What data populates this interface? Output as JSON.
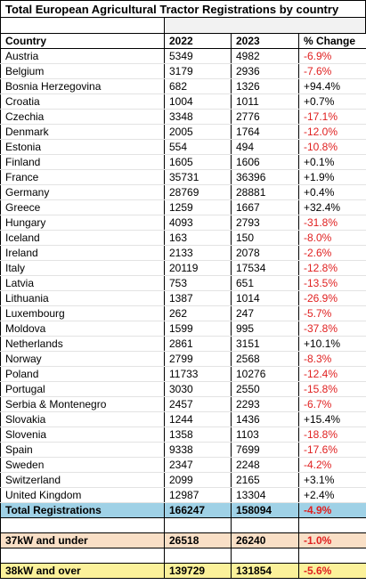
{
  "title": "Total European Agricultural Tractor Registrations by country",
  "headers": [
    "Country",
    "2022",
    "2023",
    "% Change"
  ],
  "rows": [
    [
      "Austria",
      "5349",
      "4982",
      "-6.9%"
    ],
    [
      "Belgium",
      "3179",
      "2936",
      "-7.6%"
    ],
    [
      "Bosnia Herzegovina",
      "682",
      "1326",
      "+94.4%"
    ],
    [
      "Croatia",
      "1004",
      "1011",
      "+0.7%"
    ],
    [
      "Czechia",
      "3348",
      "2776",
      "-17.1%"
    ],
    [
      "Denmark",
      "2005",
      "1764",
      "-12.0%"
    ],
    [
      "Estonia",
      "554",
      "494",
      "-10.8%"
    ],
    [
      "Finland",
      "1605",
      "1606",
      "+0.1%"
    ],
    [
      "France",
      "35731",
      "36396",
      "+1.9%"
    ],
    [
      "Germany",
      "28769",
      "28881",
      "+0.4%"
    ],
    [
      "Greece",
      "1259",
      "1667",
      "+32.4%"
    ],
    [
      "Hungary",
      "4093",
      "2793",
      "-31.8%"
    ],
    [
      "Iceland",
      "163",
      "150",
      "-8.0%"
    ],
    [
      "Ireland",
      "2133",
      "2078",
      "-2.6%"
    ],
    [
      "Italy",
      "20119",
      "17534",
      "-12.8%"
    ],
    [
      "Latvia",
      "753",
      "651",
      "-13.5%"
    ],
    [
      "Lithuania",
      "1387",
      "1014",
      "-26.9%"
    ],
    [
      "Luxembourg",
      "262",
      "247",
      "-5.7%"
    ],
    [
      "Moldova",
      "1599",
      "995",
      "-37.8%"
    ],
    [
      "Netherlands",
      "2861",
      "3151",
      "+10.1%"
    ],
    [
      "Norway",
      "2799",
      "2568",
      "-8.3%"
    ],
    [
      "Poland",
      "11733",
      "10276",
      "-12.4%"
    ],
    [
      "Portugal",
      "3030",
      "2550",
      "-15.8%"
    ],
    [
      "Serbia & Montenegro",
      "2457",
      "2293",
      "-6.7%"
    ],
    [
      "Slovakia",
      "1244",
      "1436",
      "+15.4%"
    ],
    [
      "Slovenia",
      "1358",
      "1103",
      "-18.8%"
    ],
    [
      "Spain",
      "9338",
      "7699",
      "-17.6%"
    ],
    [
      "Sweden",
      "2347",
      "2248",
      "-4.2%"
    ],
    [
      "Switzerland",
      "2099",
      "2165",
      "+3.1%"
    ],
    [
      "United Kingdom",
      "12987",
      "13304",
      "+2.4%"
    ]
  ],
  "total": [
    "Total Registrations",
    "166247",
    "158094",
    "-4.9%"
  ],
  "under37": [
    "37kW and under",
    "26518",
    "26240",
    "-1.0%"
  ],
  "over38": [
    "38kW and over",
    "139729",
    "131854",
    "-5.6%"
  ],
  "colors": {
    "negative": "#e02020",
    "total_bg": "#9fd1e6",
    "under37_bg": "#f9dfc6",
    "over38_bg": "#fbf19a"
  }
}
